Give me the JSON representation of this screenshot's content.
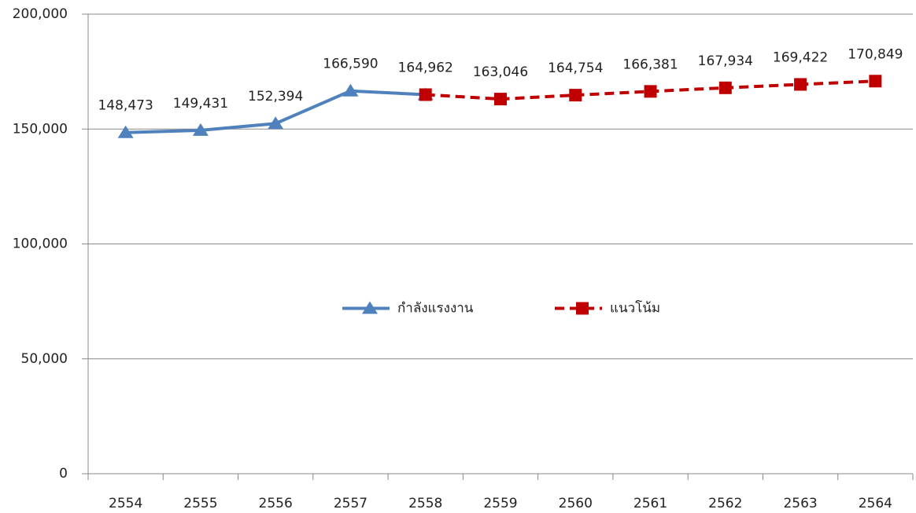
{
  "chart_data": {
    "type": "line",
    "categories": [
      "2554",
      "2555",
      "2556",
      "2557",
      "2558",
      "2559",
      "2560",
      "2561",
      "2562",
      "2563",
      "2564"
    ],
    "series": [
      {
        "name": "กำลังแรงงาน",
        "color": "#4f81bd",
        "marker": "triangle",
        "dashed": false,
        "values": [
          148473,
          149431,
          152394,
          166590,
          164962,
          null,
          null,
          null,
          null,
          null,
          null
        ],
        "value_labels": [
          "148,473",
          "149,431",
          "152,394",
          "166,590",
          "164,962",
          null,
          null,
          null,
          null,
          null,
          null
        ]
      },
      {
        "name": "แนวโน้ม",
        "color": "#c00000",
        "marker": "square",
        "dashed": true,
        "values": [
          null,
          null,
          null,
          null,
          164962,
          163046,
          164754,
          166381,
          167934,
          169422,
          170849
        ],
        "value_labels": [
          null,
          null,
          null,
          null,
          null,
          "163,046",
          "164,754",
          "166,381",
          "167,934",
          "169,422",
          "170,849"
        ]
      }
    ],
    "ylim": [
      0,
      200000
    ],
    "yticks": [
      0,
      {
        "value": 50000,
        "label": "50,000"
      },
      {
        "value": 100000,
        "label": "100,000"
      },
      {
        "value": 150000,
        "label": "150,000"
      },
      {
        "value": 200000,
        "label": "200,000"
      }
    ],
    "grid": true,
    "legend": "center"
  }
}
